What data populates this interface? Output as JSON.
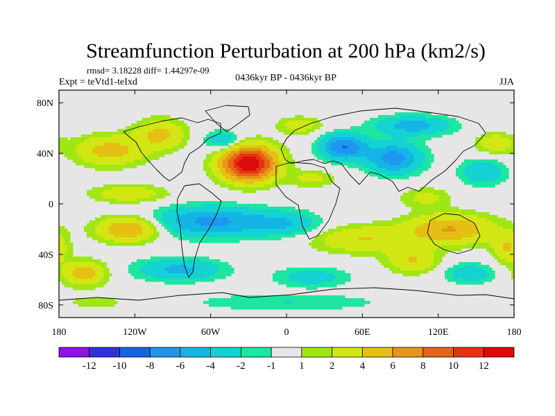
{
  "chart_data": {
    "type": "heatmap",
    "title": "Streamfunction Perturbation at 200 hPa (km2/s)",
    "subtitle_stats": "rmsd= 3.18228 diff= 1.44297e-09",
    "left_label": "Expt = teVtd1-teIxd",
    "center_label": "0436kyr BP - 0436kyr BP",
    "right_label": "JJA",
    "projection": "cylindrical equidistant, coastlines overlay",
    "xlim": [
      -180,
      180
    ],
    "ylim": [
      -90,
      90
    ],
    "x_ticks": [
      {
        "value": -180,
        "label": "180"
      },
      {
        "value": -120,
        "label": "120W"
      },
      {
        "value": -60,
        "label": "60W"
      },
      {
        "value": 0,
        "label": "0"
      },
      {
        "value": 60,
        "label": "60E"
      },
      {
        "value": 120,
        "label": "120E"
      },
      {
        "value": 180,
        "label": "180"
      }
    ],
    "y_ticks": [
      {
        "value": 80,
        "label": "80N"
      },
      {
        "value": 40,
        "label": "40N"
      },
      {
        "value": 0,
        "label": "0"
      },
      {
        "value": -40,
        "label": "40S"
      },
      {
        "value": -80,
        "label": "80S"
      }
    ],
    "colorbar": {
      "levels": [
        "-12",
        "-10",
        "-8",
        "-6",
        "-4",
        "-2",
        "-1",
        "1",
        "2",
        "4",
        "6",
        "8",
        "10",
        "12"
      ],
      "colors": [
        "#8c14e6",
        "#3232dc",
        "#1464e6",
        "#1e96f0",
        "#14b4e6",
        "#14d2d2",
        "#1ee6a0",
        "#e6e6e6",
        "#a0e614",
        "#d2e614",
        "#e6be14",
        "#e69614",
        "#e66414",
        "#e63214",
        "#dc0a0a"
      ]
    },
    "field_features": [
      {
        "lon": -30,
        "lat": 32,
        "amp": 14,
        "rx": 22,
        "ry": 14
      },
      {
        "lon": -100,
        "lat": 55,
        "amp": 4.5,
        "rx": 20,
        "ry": 12
      },
      {
        "lon": -140,
        "lat": 42,
        "amp": 5,
        "rx": 28,
        "ry": 12
      },
      {
        "lon": -50,
        "lat": 50,
        "amp": -4,
        "rx": 15,
        "ry": 8
      },
      {
        "lon": 10,
        "lat": 62,
        "amp": 3,
        "rx": 18,
        "ry": 7
      },
      {
        "lon": 45,
        "lat": 45,
        "amp": -8,
        "rx": 18,
        "ry": 10
      },
      {
        "lon": 85,
        "lat": 36,
        "amp": -7,
        "rx": 22,
        "ry": 12
      },
      {
        "lon": 100,
        "lat": 62,
        "amp": -5,
        "rx": 30,
        "ry": 8
      },
      {
        "lon": 155,
        "lat": 25,
        "amp": -4,
        "rx": 18,
        "ry": 10
      },
      {
        "lon": 165,
        "lat": 48,
        "amp": 3.5,
        "rx": 15,
        "ry": 8
      },
      {
        "lon": 20,
        "lat": 20,
        "amp": 2.5,
        "rx": 18,
        "ry": 7
      },
      {
        "lon": -125,
        "lat": 8,
        "amp": 3.5,
        "rx": 30,
        "ry": 7
      },
      {
        "lon": -60,
        "lat": -14,
        "amp": -6.5,
        "rx": 45,
        "ry": 12
      },
      {
        "lon": 0,
        "lat": -16,
        "amp": -3.5,
        "rx": 28,
        "ry": 10
      },
      {
        "lon": -85,
        "lat": -52,
        "amp": -4.5,
        "rx": 35,
        "ry": 9
      },
      {
        "lon": 20,
        "lat": -58,
        "amp": -3,
        "rx": 30,
        "ry": 8
      },
      {
        "lon": -125,
        "lat": -20,
        "amp": 6.5,
        "rx": 25,
        "ry": 10
      },
      {
        "lon": -160,
        "lat": -55,
        "amp": 5,
        "rx": 18,
        "ry": 10
      },
      {
        "lon": 60,
        "lat": -28,
        "amp": 4,
        "rx": 40,
        "ry": 11
      },
      {
        "lon": 130,
        "lat": -20,
        "amp": 6,
        "rx": 35,
        "ry": 12
      },
      {
        "lon": 100,
        "lat": -45,
        "amp": 4,
        "rx": 20,
        "ry": 10
      },
      {
        "lon": 145,
        "lat": -55,
        "amp": -3.5,
        "rx": 20,
        "ry": 8
      },
      {
        "lon": 175,
        "lat": -35,
        "amp": 4,
        "rx": 12,
        "ry": 12
      },
      {
        "lon": 110,
        "lat": 5,
        "amp": 2.5,
        "rx": 20,
        "ry": 8
      },
      {
        "lon": 0,
        "lat": -78,
        "amp": -2,
        "rx": 80,
        "ry": 7
      },
      {
        "lon": -150,
        "lat": -78,
        "amp": 1.5,
        "rx": 30,
        "ry": 6
      }
    ]
  }
}
